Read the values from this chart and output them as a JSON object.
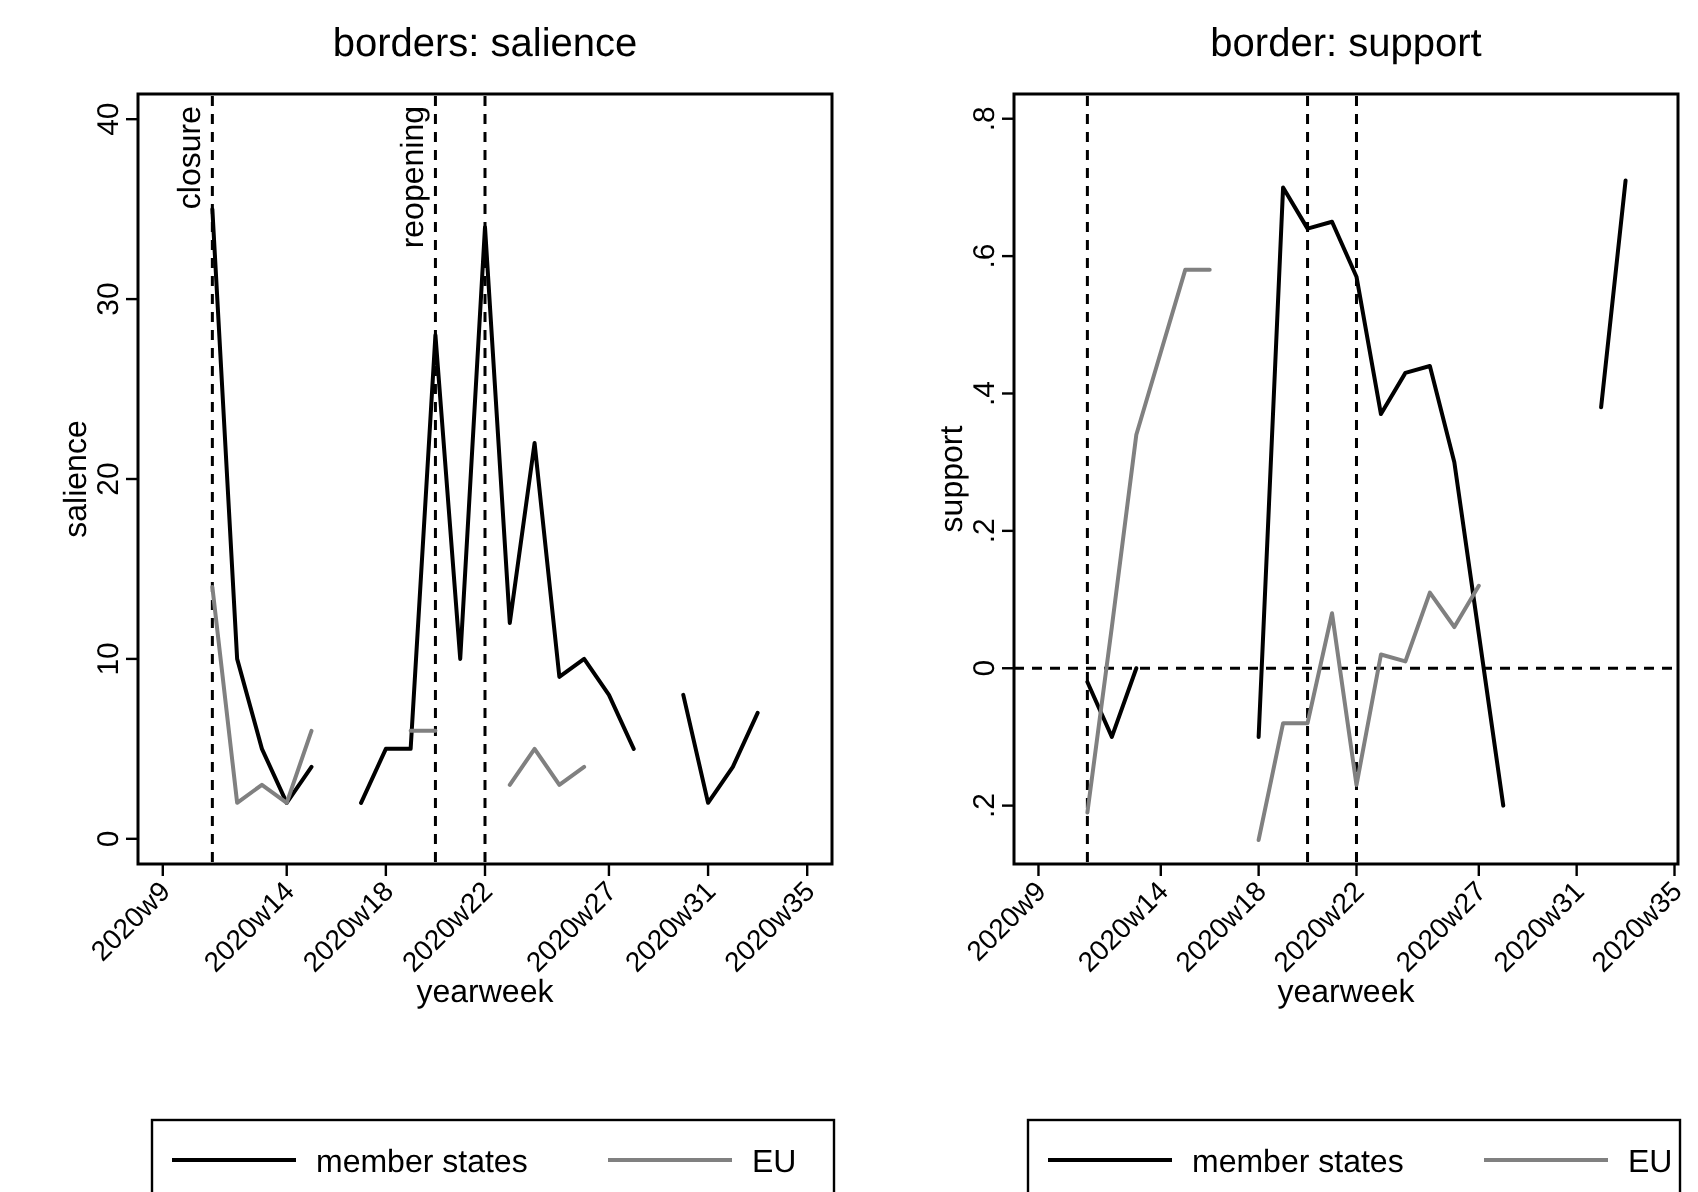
{
  "chart_data": [
    {
      "type": "line",
      "title": "borders: salience",
      "xlabel": "yearweek",
      "ylabel": "salience",
      "x": [
        "2020-03-11",
        "2020-03-18",
        "2020-03-25",
        "2020-04-01",
        "2020-04-08",
        "2020-04-15",
        "2020-04-22",
        "2020-04-29",
        "2020-05-06",
        "2020-05-13",
        "2020-05-20",
        "2020-05-27",
        "2020-06-03",
        "2020-06-10",
        "2020-06-17",
        "2020-06-24",
        "2020-07-01",
        "2020-07-08",
        "2020-07-15",
        "2020-07-22",
        "2020-07-29",
        "2020-08-05",
        "2020-08-12"
      ],
      "series": [
        {
          "name": "member states",
          "color": "#000000",
          "values": [
            35,
            10,
            5,
            2,
            4,
            null,
            2,
            5,
            5,
            28,
            10,
            34,
            12,
            22,
            9,
            10,
            8,
            5,
            null,
            8,
            2,
            4,
            7
          ]
        },
        {
          "name": "EU",
          "color": "#808080",
          "values": [
            14,
            2,
            3,
            2,
            6,
            null,
            null,
            null,
            6,
            6,
            null,
            null,
            3,
            5,
            3,
            4,
            null,
            null,
            null,
            null,
            null,
            null,
            null
          ]
        }
      ],
      "xlim": [
        "2020-02-19",
        "2020-09-02"
      ],
      "xticks": [
        {
          "value": "2020-02-26",
          "label": "2020w9"
        },
        {
          "value": "2020-04-01",
          "label": "2020w14"
        },
        {
          "value": "2020-04-29",
          "label": "2020w18"
        },
        {
          "value": "2020-05-27",
          "label": "2020w22"
        },
        {
          "value": "2020-07-01",
          "label": "2020w27"
        },
        {
          "value": "2020-07-29",
          "label": "2020w31"
        },
        {
          "value": "2020-08-26",
          "label": "2020w35"
        }
      ],
      "ylim": [
        -1.4,
        41.4
      ],
      "yticks": [
        0,
        10,
        20,
        30,
        40
      ],
      "ref_lines": [
        {
          "axis": "x",
          "value": "2020-03-11",
          "label": "closure",
          "line_style": "dashed"
        },
        {
          "axis": "x",
          "value": "2020-05-13",
          "label": "reopening",
          "line_style": "dashed"
        },
        {
          "axis": "x",
          "value": "2020-05-27",
          "line_style": "dashed"
        }
      ],
      "grid": false,
      "legend": "bottom",
      "marker": "none",
      "line_style": "solid"
    },
    {
      "type": "line",
      "title": "border: support",
      "xlabel": "yearweek",
      "ylabel": "support",
      "x": [
        "2020-03-11",
        "2020-03-18",
        "2020-03-25",
        "2020-04-01",
        "2020-04-08",
        "2020-04-15",
        "2020-04-22",
        "2020-04-29",
        "2020-05-06",
        "2020-05-13",
        "2020-05-20",
        "2020-05-27",
        "2020-06-03",
        "2020-06-10",
        "2020-06-17",
        "2020-06-24",
        "2020-07-01",
        "2020-07-08",
        "2020-07-15",
        "2020-07-22",
        "2020-07-29",
        "2020-08-05",
        "2020-08-12"
      ],
      "series": [
        {
          "name": "member states",
          "color": "#000000",
          "values": [
            -0.02,
            -0.1,
            0,
            null,
            null,
            null,
            null,
            -0.1,
            0.7,
            0.64,
            0.65,
            0.57,
            0.37,
            0.43,
            0.44,
            0.3,
            0.05,
            -0.2,
            null,
            null,
            null,
            0.38,
            0.71
          ]
        },
        {
          "name": "EU",
          "color": "#808080",
          "values": [
            -0.21,
            0.06,
            0.34,
            0.46,
            0.58,
            0.58,
            null,
            -0.25,
            -0.08,
            -0.08,
            0.08,
            -0.17,
            0.02,
            0.01,
            0.11,
            0.06,
            0.12,
            null,
            null,
            null,
            null,
            null,
            null
          ]
        }
      ],
      "xlim": [
        "2020-02-19",
        "2020-08-27"
      ],
      "xticks": [
        {
          "value": "2020-02-26",
          "label": "2020w9"
        },
        {
          "value": "2020-04-01",
          "label": "2020w14"
        },
        {
          "value": "2020-04-29",
          "label": "2020w18"
        },
        {
          "value": "2020-05-27",
          "label": "2020w22"
        },
        {
          "value": "2020-07-01",
          "label": "2020w27"
        },
        {
          "value": "2020-07-29",
          "label": "2020w31"
        },
        {
          "value": "2020-08-26",
          "label": "2020w35"
        }
      ],
      "ylim": [
        -0.285,
        0.836
      ],
      "yticks": [
        {
          "value": -0.2,
          "label": ".2"
        },
        {
          "value": 0,
          "label": "0"
        },
        {
          "value": 0.2,
          "label": ".2"
        },
        {
          "value": 0.4,
          "label": ".4"
        },
        {
          "value": 0.6,
          "label": ".6"
        },
        {
          "value": 0.8,
          "label": ".8"
        }
      ],
      "ref_lines": [
        {
          "axis": "x",
          "value": "2020-03-11",
          "line_style": "dashed"
        },
        {
          "axis": "x",
          "value": "2020-05-13",
          "line_style": "dashed"
        },
        {
          "axis": "x",
          "value": "2020-05-27",
          "line_style": "dashed"
        },
        {
          "axis": "y",
          "value": 0,
          "line_style": "dashed"
        }
      ],
      "grid": false,
      "legend": "bottom",
      "marker": "none",
      "line_style": "solid"
    }
  ]
}
